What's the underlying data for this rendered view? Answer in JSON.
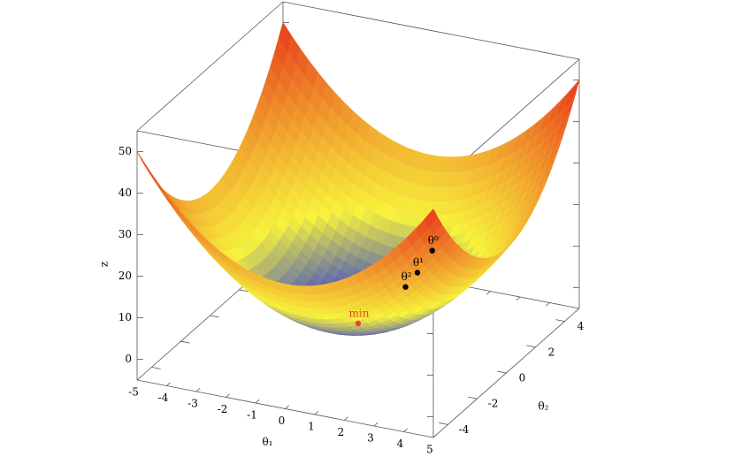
{
  "chart_data": {
    "type": "surface3d",
    "xlabel": "θ₁",
    "ylabel": "θ₂",
    "zlabel": "z",
    "xlim": [
      -5,
      5
    ],
    "ylim": [
      -5,
      5
    ],
    "zlim": [
      -5,
      55
    ],
    "xticks": [
      -5,
      -4,
      -3,
      -2,
      -1,
      0,
      1,
      2,
      3,
      4,
      5
    ],
    "yticks": [
      -4,
      -2,
      0,
      2,
      4
    ],
    "zticks": [
      0,
      10,
      20,
      30,
      40,
      50
    ],
    "colormap": [
      "#2b3bd4",
      "#f7f23c",
      "#e8381c"
    ],
    "points": [
      {
        "label": "θ⁰",
        "x": 2.5,
        "y": 0,
        "z": 21,
        "color": "#000000"
      },
      {
        "label": "θ¹",
        "x": 2,
        "y": 0,
        "z": 15,
        "color": "#000000"
      },
      {
        "label": "θ²",
        "x": 1.6,
        "y": 0,
        "z": 11,
        "color": "#000000"
      },
      {
        "label": "min",
        "x": 0,
        "y": 0,
        "z": 0,
        "color": "#e8452c"
      }
    ]
  }
}
